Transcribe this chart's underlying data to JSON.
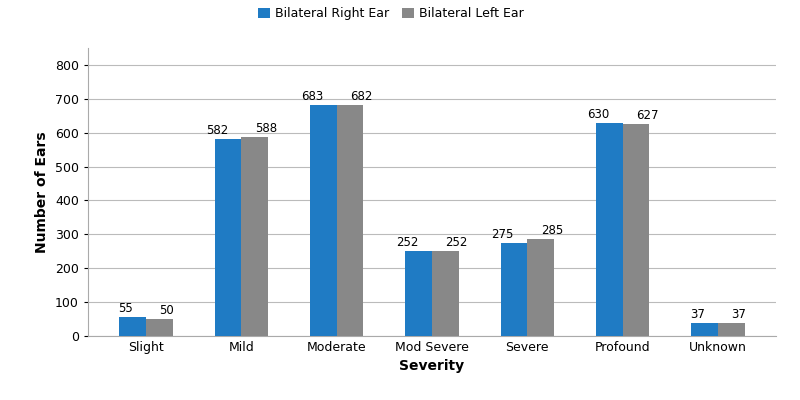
{
  "categories": [
    "Slight",
    "Mild",
    "Moderate",
    "Mod Severe",
    "Severe",
    "Profound",
    "Unknown"
  ],
  "right_ear": [
    55,
    582,
    683,
    252,
    275,
    630,
    37
  ],
  "left_ear": [
    50,
    588,
    682,
    252,
    285,
    627,
    37
  ],
  "right_color": "#1F7BC4",
  "left_color": "#888888",
  "xlabel": "Severity",
  "ylabel": "Number of Ears",
  "ylim": [
    0,
    850
  ],
  "yticks": [
    0,
    100,
    200,
    300,
    400,
    500,
    600,
    700,
    800
  ],
  "legend_right": "Bilateral Right Ear",
  "legend_left": "Bilateral Left Ear",
  "bar_width": 0.28,
  "label_fontsize": 8.5,
  "axis_label_fontsize": 10,
  "tick_fontsize": 9,
  "legend_fontsize": 9,
  "background_color": "#ffffff",
  "grid_color": "#bbbbbb"
}
